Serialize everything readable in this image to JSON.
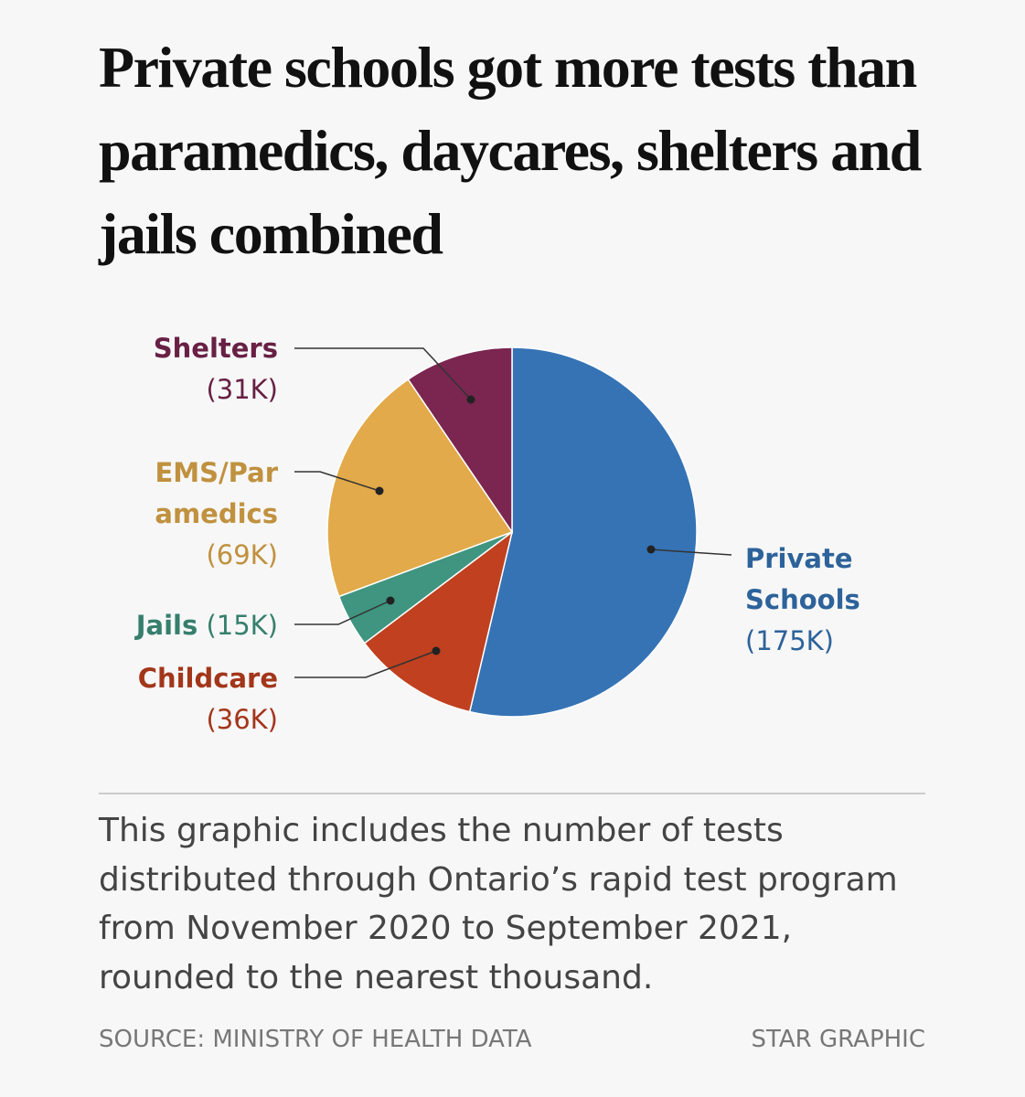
{
  "chart_data": {
    "type": "pie",
    "title": "Private schools got more tests than paramedics, daycares, shelters and jails combined",
    "categories": [
      "Private Schools",
      "Childcare",
      "Jails",
      "EMS/Paramedics",
      "Shelters"
    ],
    "values": [
      175000,
      36000,
      15000,
      69000,
      31000
    ],
    "value_labels": [
      "(175K)",
      "(36K)",
      "(15K)",
      "(69K)",
      "(31K)"
    ],
    "colors": [
      "#3573b5",
      "#c0401f",
      "#3f9580",
      "#e2aa4a",
      "#7a2650"
    ],
    "note": "This graphic includes the number of tests distributed through Ontario’s rapid test program from November 2020 to September 2021, rounded to the nearest thousand.",
    "source": "SOURCE: MINISTRY OF HEALTH DATA",
    "credit": "STAR GRAPHIC"
  }
}
